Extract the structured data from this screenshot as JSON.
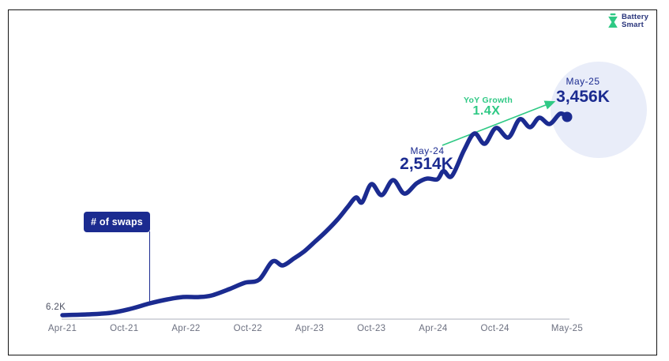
{
  "logo": {
    "name": "Battery Smart",
    "line1": "Battery",
    "line2": "Smart",
    "icon": "battery-swap-icon",
    "green": "#2FC985",
    "navy": "#27337A"
  },
  "chart_data": {
    "type": "line",
    "title": "# of swaps",
    "unit": "K swaps",
    "series": [
      {
        "name": "# of swaps",
        "x_unit": "months since Apr-21",
        "y_unit": "K",
        "points": [
          [
            0,
            6.2
          ],
          [
            2.4,
            20
          ],
          [
            4.7,
            47
          ],
          [
            6.6,
            116
          ],
          [
            8.5,
            212
          ],
          [
            10.2,
            281
          ],
          [
            11.7,
            322
          ],
          [
            13.3,
            322
          ],
          [
            14.5,
            350
          ],
          [
            16.2,
            460
          ],
          [
            17.7,
            570
          ],
          [
            19.1,
            625
          ],
          [
            20.4,
            941
          ],
          [
            21.4,
            872
          ],
          [
            22.5,
            996
          ],
          [
            23.5,
            1120
          ],
          [
            24.6,
            1298
          ],
          [
            25.6,
            1463
          ],
          [
            26.7,
            1669
          ],
          [
            27.7,
            1889
          ],
          [
            28.5,
            2054
          ],
          [
            29.1,
            1971
          ],
          [
            30,
            2287
          ],
          [
            31,
            2095
          ],
          [
            32.1,
            2356
          ],
          [
            33.2,
            2122
          ],
          [
            34.4,
            2301
          ],
          [
            35.4,
            2383
          ],
          [
            36.4,
            2370
          ],
          [
            37,
            2514
          ],
          [
            37.8,
            2425
          ],
          [
            39,
            2879
          ],
          [
            40,
            3168
          ],
          [
            41,
            2989
          ],
          [
            42.1,
            3264
          ],
          [
            43.3,
            3099
          ],
          [
            44.4,
            3415
          ],
          [
            45.4,
            3277
          ],
          [
            46.3,
            3442
          ],
          [
            47.3,
            3332
          ],
          [
            48.3,
            3510
          ],
          [
            49,
            3456
          ]
        ]
      }
    ],
    "x_axis": {
      "ticks": [
        {
          "month": 0,
          "label": "Apr-21"
        },
        {
          "month": 6,
          "label": "Oct-21"
        },
        {
          "month": 12,
          "label": "Apr-22"
        },
        {
          "month": 18,
          "label": "Oct-22"
        },
        {
          "month": 24,
          "label": "Apr-23"
        },
        {
          "month": 30,
          "label": "Oct-23"
        },
        {
          "month": 36,
          "label": "Apr-24"
        },
        {
          "month": 42,
          "label": "Oct-24"
        },
        {
          "month": 49,
          "label": "May-25"
        }
      ]
    },
    "y_axis": {
      "range_k": [
        0,
        3600
      ],
      "ticks_visible": false
    },
    "annotations": [
      {
        "id": "start",
        "text": "6.2K",
        "month": 0,
        "value_k": 6.2
      },
      {
        "id": "may24",
        "label": "May-24",
        "value": "2,514K",
        "month": 37,
        "value_k": 2514
      },
      {
        "id": "may25",
        "label": "May-25",
        "value": "3,456K",
        "month": 49,
        "value_k": 3456
      },
      {
        "id": "yoy_growth",
        "label": "YoY Growth",
        "value": "1.4X"
      }
    ],
    "colors": {
      "line_navy": "#1B2B90",
      "accent_green": "#2FC985",
      "halo_fill": "#E9EDF9",
      "axis_line": "#C9CCD3",
      "tick_text": "#6C7080",
      "start_label_text": "#4E5263",
      "badge_bg": "#1B2B90",
      "badge_text": "#FFFFFF"
    },
    "legend": "none"
  }
}
